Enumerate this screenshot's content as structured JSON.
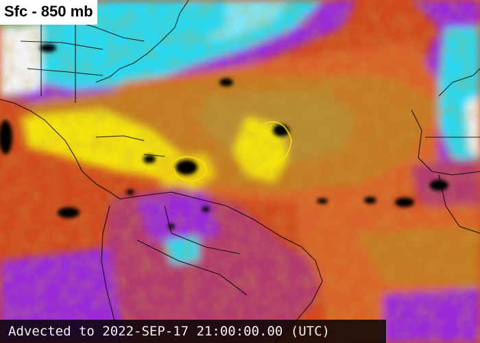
{
  "map": {
    "layer_label": "Sfc - 850 mb",
    "timestamp": "Advected to 2022-SEP-17 21:00:00.00 (UTC)",
    "colors": {
      "very_dry": "#f2f2f2",
      "dry": "#2ad8f0",
      "moderately_dry": "#9a2cd8",
      "transitional": "#b23a6e",
      "moist": "#e8401c",
      "very_moist": "#c47a22",
      "saturated": "#f5e20a",
      "cloud": "#000000",
      "landmass_outline": "#000000"
    }
  }
}
